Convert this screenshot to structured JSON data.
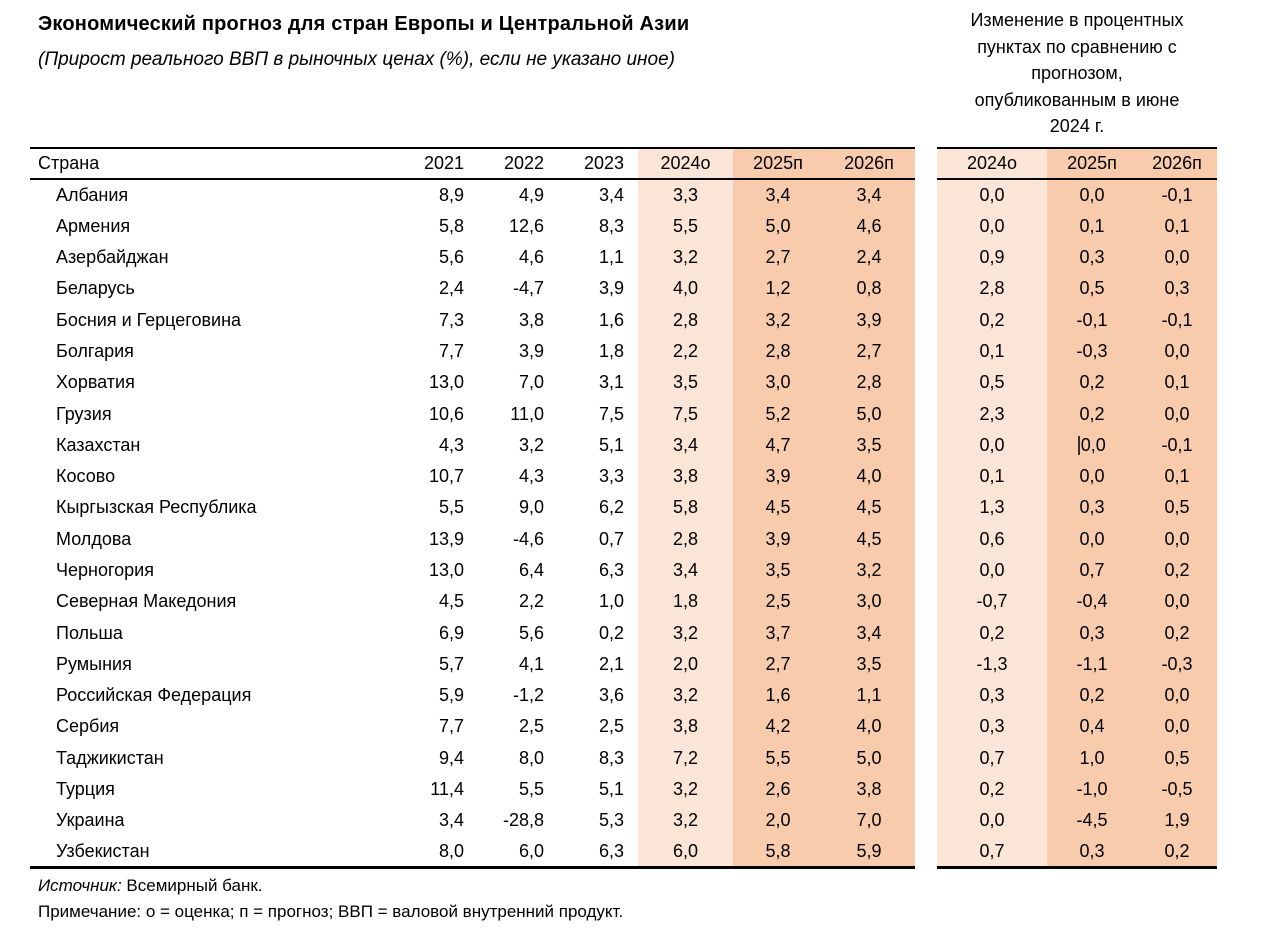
{
  "colors": {
    "band_light": "#fbe5d6",
    "band_dark": "#f8cbad",
    "text": "#000000"
  },
  "chart_data": {
    "type": "table",
    "title": "Экономический прогноз для стран Европы и Центральной Азии",
    "subtitle": "(Прирост реального ВВП в рыночных ценах (%), если не указано иное)",
    "right_note_lines": [
      "Изменение в процентных",
      "пунктах по сравнению с",
      "прогнозом,",
      "опубликованным в июне",
      "2024 г."
    ],
    "country_column_header": "Страна",
    "gdp_column_headers": [
      "2021",
      "2022",
      "2023",
      "2024о",
      "2025п",
      "2026п"
    ],
    "revision_column_headers": [
      "2024о",
      "2025п",
      "2026п"
    ],
    "rows": [
      {
        "country": "Албания",
        "values": [
          "8,9",
          "4,9",
          "3,4",
          "3,3",
          "3,4",
          "3,4",
          "0,0",
          "0,0",
          "-0,1"
        ]
      },
      {
        "country": "Армения",
        "values": [
          "5,8",
          "12,6",
          "8,3",
          "5,5",
          "5,0",
          "4,6",
          "0,0",
          "0,1",
          "0,1"
        ]
      },
      {
        "country": "Азербайджан",
        "values": [
          "5,6",
          "4,6",
          "1,1",
          "3,2",
          "2,7",
          "2,4",
          "0,9",
          "0,3",
          "0,0"
        ]
      },
      {
        "country": "Беларусь",
        "values": [
          "2,4",
          "-4,7",
          "3,9",
          "4,0",
          "1,2",
          "0,8",
          "2,8",
          "0,5",
          "0,3"
        ]
      },
      {
        "country": "Босния и Герцеговина",
        "values": [
          "7,3",
          "3,8",
          "1,6",
          "2,8",
          "3,2",
          "3,9",
          "0,2",
          "-0,1",
          "-0,1"
        ]
      },
      {
        "country": "Болгария",
        "values": [
          "7,7",
          "3,9",
          "1,8",
          "2,2",
          "2,8",
          "2,7",
          "0,1",
          "-0,3",
          "0,0"
        ]
      },
      {
        "country": "Хорватия",
        "values": [
          "13,0",
          "7,0",
          "3,1",
          "3,5",
          "3,0",
          "2,8",
          "0,5",
          "0,2",
          "0,1"
        ]
      },
      {
        "country": "Грузия",
        "values": [
          "10,6",
          "11,0",
          "7,5",
          "7,5",
          "5,2",
          "5,0",
          "2,3",
          "0,2",
          "0,0"
        ]
      },
      {
        "country": "Казахстан",
        "values": [
          "4,3",
          "3,2",
          "5,1",
          "3,4",
          "4,7",
          "3,5",
          "0,0",
          "0,0",
          "-0,1"
        ]
      },
      {
        "country": "Косово",
        "values": [
          "10,7",
          "4,3",
          "3,3",
          "3,8",
          "3,9",
          "4,0",
          "0,1",
          "0,0",
          "0,1"
        ]
      },
      {
        "country": "Кыргызская Республика",
        "values": [
          "5,5",
          "9,0",
          "6,2",
          "5,8",
          "4,5",
          "4,5",
          "1,3",
          "0,3",
          "0,5"
        ]
      },
      {
        "country": "Молдова",
        "values": [
          "13,9",
          "-4,6",
          "0,7",
          "2,8",
          "3,9",
          "4,5",
          "0,6",
          "0,0",
          "0,0"
        ]
      },
      {
        "country": "Черногория",
        "values": [
          "13,0",
          "6,4",
          "6,3",
          "3,4",
          "3,5",
          "3,2",
          "0,0",
          "0,7",
          "0,2"
        ]
      },
      {
        "country": "Северная Македония",
        "values": [
          "4,5",
          "2,2",
          "1,0",
          "1,8",
          "2,5",
          "3,0",
          "-0,7",
          "-0,4",
          "0,0"
        ]
      },
      {
        "country": "Польша",
        "values": [
          "6,9",
          "5,6",
          "0,2",
          "3,2",
          "3,7",
          "3,4",
          "0,2",
          "0,3",
          "0,2"
        ]
      },
      {
        "country": "Румыния",
        "values": [
          "5,7",
          "4,1",
          "2,1",
          "2,0",
          "2,7",
          "3,5",
          "-1,3",
          "-1,1",
          "-0,3"
        ]
      },
      {
        "country": "Российская Федерация",
        "values": [
          "5,9",
          "-1,2",
          "3,6",
          "3,2",
          "1,6",
          "1,1",
          "0,3",
          "0,2",
          "0,0"
        ]
      },
      {
        "country": "Сербия",
        "values": [
          "7,7",
          "2,5",
          "2,5",
          "3,8",
          "4,2",
          "4,0",
          "0,3",
          "0,4",
          "0,0"
        ]
      },
      {
        "country": "Таджикистан",
        "values": [
          "9,4",
          "8,0",
          "8,3",
          "7,2",
          "5,5",
          "5,0",
          "0,7",
          "1,0",
          "0,5"
        ]
      },
      {
        "country": "Турция",
        "values": [
          "11,4",
          "5,5",
          "5,1",
          "3,2",
          "2,6",
          "3,8",
          "0,2",
          "-1,0",
          "-0,5"
        ]
      },
      {
        "country": "Украина",
        "values": [
          "3,4",
          "-28,8",
          "5,3",
          "3,2",
          "2,0",
          "7,0",
          "0,0",
          "-4,5",
          "1,9"
        ]
      },
      {
        "country": "Узбекистан",
        "values": [
          "8,0",
          "6,0",
          "6,3",
          "6,0",
          "5,8",
          "5,9",
          "0,7",
          "0,3",
          "0,2"
        ]
      }
    ]
  },
  "caret_artifact": {
    "row_index": 8,
    "value_index": 7
  },
  "footer": {
    "source_label": "Источник:",
    "source_text": " Всемирный банк.",
    "note": "Примечание: о = оценка; п = прогноз; ВВП = валовой внутренний продукт."
  }
}
